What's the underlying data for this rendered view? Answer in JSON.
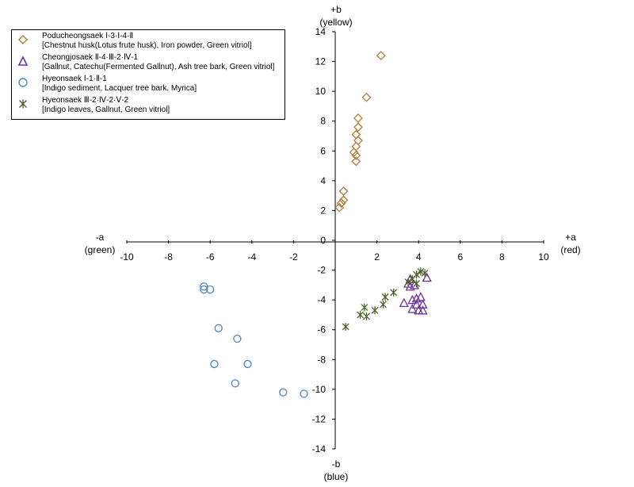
{
  "chart_data": {
    "type": "scatter",
    "title": "",
    "x_axis": {
      "min": -10,
      "max": 10,
      "step": 2,
      "label_neg": [
        "-a",
        "(green)"
      ],
      "label_pos": [
        "+a",
        "(red)"
      ]
    },
    "y_axis": {
      "min": -14,
      "max": 14,
      "step": 2,
      "label_pos": [
        "+b",
        "(yellow)"
      ],
      "label_neg": [
        "-b",
        "(blue)"
      ]
    },
    "grid": false,
    "legend_position": "top-left",
    "series": [
      {
        "name": "Poducheongsaek Ⅰ-3·Ⅰ-4·Ⅱ",
        "description": "[Chestnut husk(Lotus frute husk), Iron powder, Green vitriol]",
        "marker": "diamond",
        "color": "#b07d3c",
        "points": [
          [
            2.2,
            12.4
          ],
          [
            1.5,
            9.6
          ],
          [
            1.1,
            8.2
          ],
          [
            1.1,
            7.6
          ],
          [
            1.0,
            7.1
          ],
          [
            1.1,
            6.7
          ],
          [
            1.0,
            6.3
          ],
          [
            0.9,
            5.9
          ],
          [
            1.0,
            5.7
          ],
          [
            1.0,
            5.3
          ],
          [
            0.4,
            3.3
          ],
          [
            0.4,
            2.7
          ],
          [
            0.3,
            2.5
          ],
          [
            0.2,
            2.2
          ]
        ]
      },
      {
        "name": "Cheongjosaek Ⅱ-4·Ⅲ-2·Ⅳ-1",
        "description": "[Gallnut, Catechu(Fermented Gallnut), Ash tree bark, Green vitriol]",
        "marker": "triangle",
        "color": "#7030a0",
        "points": [
          [
            3.6,
            -2.6
          ],
          [
            3.5,
            -2.9
          ],
          [
            3.8,
            -3.0
          ],
          [
            3.6,
            -3.1
          ],
          [
            3.7,
            -4.0
          ],
          [
            3.9,
            -3.9
          ],
          [
            4.1,
            -3.8
          ],
          [
            3.3,
            -4.2
          ],
          [
            3.9,
            -4.3
          ],
          [
            4.2,
            -4.3
          ],
          [
            3.7,
            -4.6
          ],
          [
            4.0,
            -4.7
          ],
          [
            4.2,
            -4.7
          ],
          [
            4.4,
            -2.5
          ]
        ]
      },
      {
        "name": "Hyeonsaek Ⅰ-1·Ⅱ-1",
        "description": "[Indigo sediment, Lacquer tree bark, Myrica]",
        "marker": "circle",
        "color": "#4a86c8",
        "points": [
          [
            -6.3,
            -3.1
          ],
          [
            -6.3,
            -3.3
          ],
          [
            -6.0,
            -3.3
          ],
          [
            -5.6,
            -5.9
          ],
          [
            -4.7,
            -6.6
          ],
          [
            -5.8,
            -8.3
          ],
          [
            -4.2,
            -8.3
          ],
          [
            -4.8,
            -9.6
          ],
          [
            -2.5,
            -10.2
          ],
          [
            -1.5,
            -10.3
          ]
        ]
      },
      {
        "name": "Hyeonsaek Ⅲ-2·Ⅳ-2·Ⅴ-2",
        "description": "[Indigo leaves, Gallnut, Green vitriol]",
        "marker": "star",
        "color": "#4f6228",
        "points": [
          [
            0.5,
            -5.8
          ],
          [
            1.2,
            -5.0
          ],
          [
            1.5,
            -5.1
          ],
          [
            1.4,
            -4.5
          ],
          [
            1.9,
            -4.7
          ],
          [
            2.3,
            -4.3
          ],
          [
            2.4,
            -3.8
          ],
          [
            2.8,
            -3.5
          ],
          [
            3.5,
            -2.8
          ],
          [
            3.7,
            -2.6
          ],
          [
            3.9,
            -2.9
          ],
          [
            3.9,
            -2.3
          ],
          [
            4.1,
            -2.1
          ],
          [
            4.3,
            -2.2
          ]
        ]
      }
    ]
  }
}
